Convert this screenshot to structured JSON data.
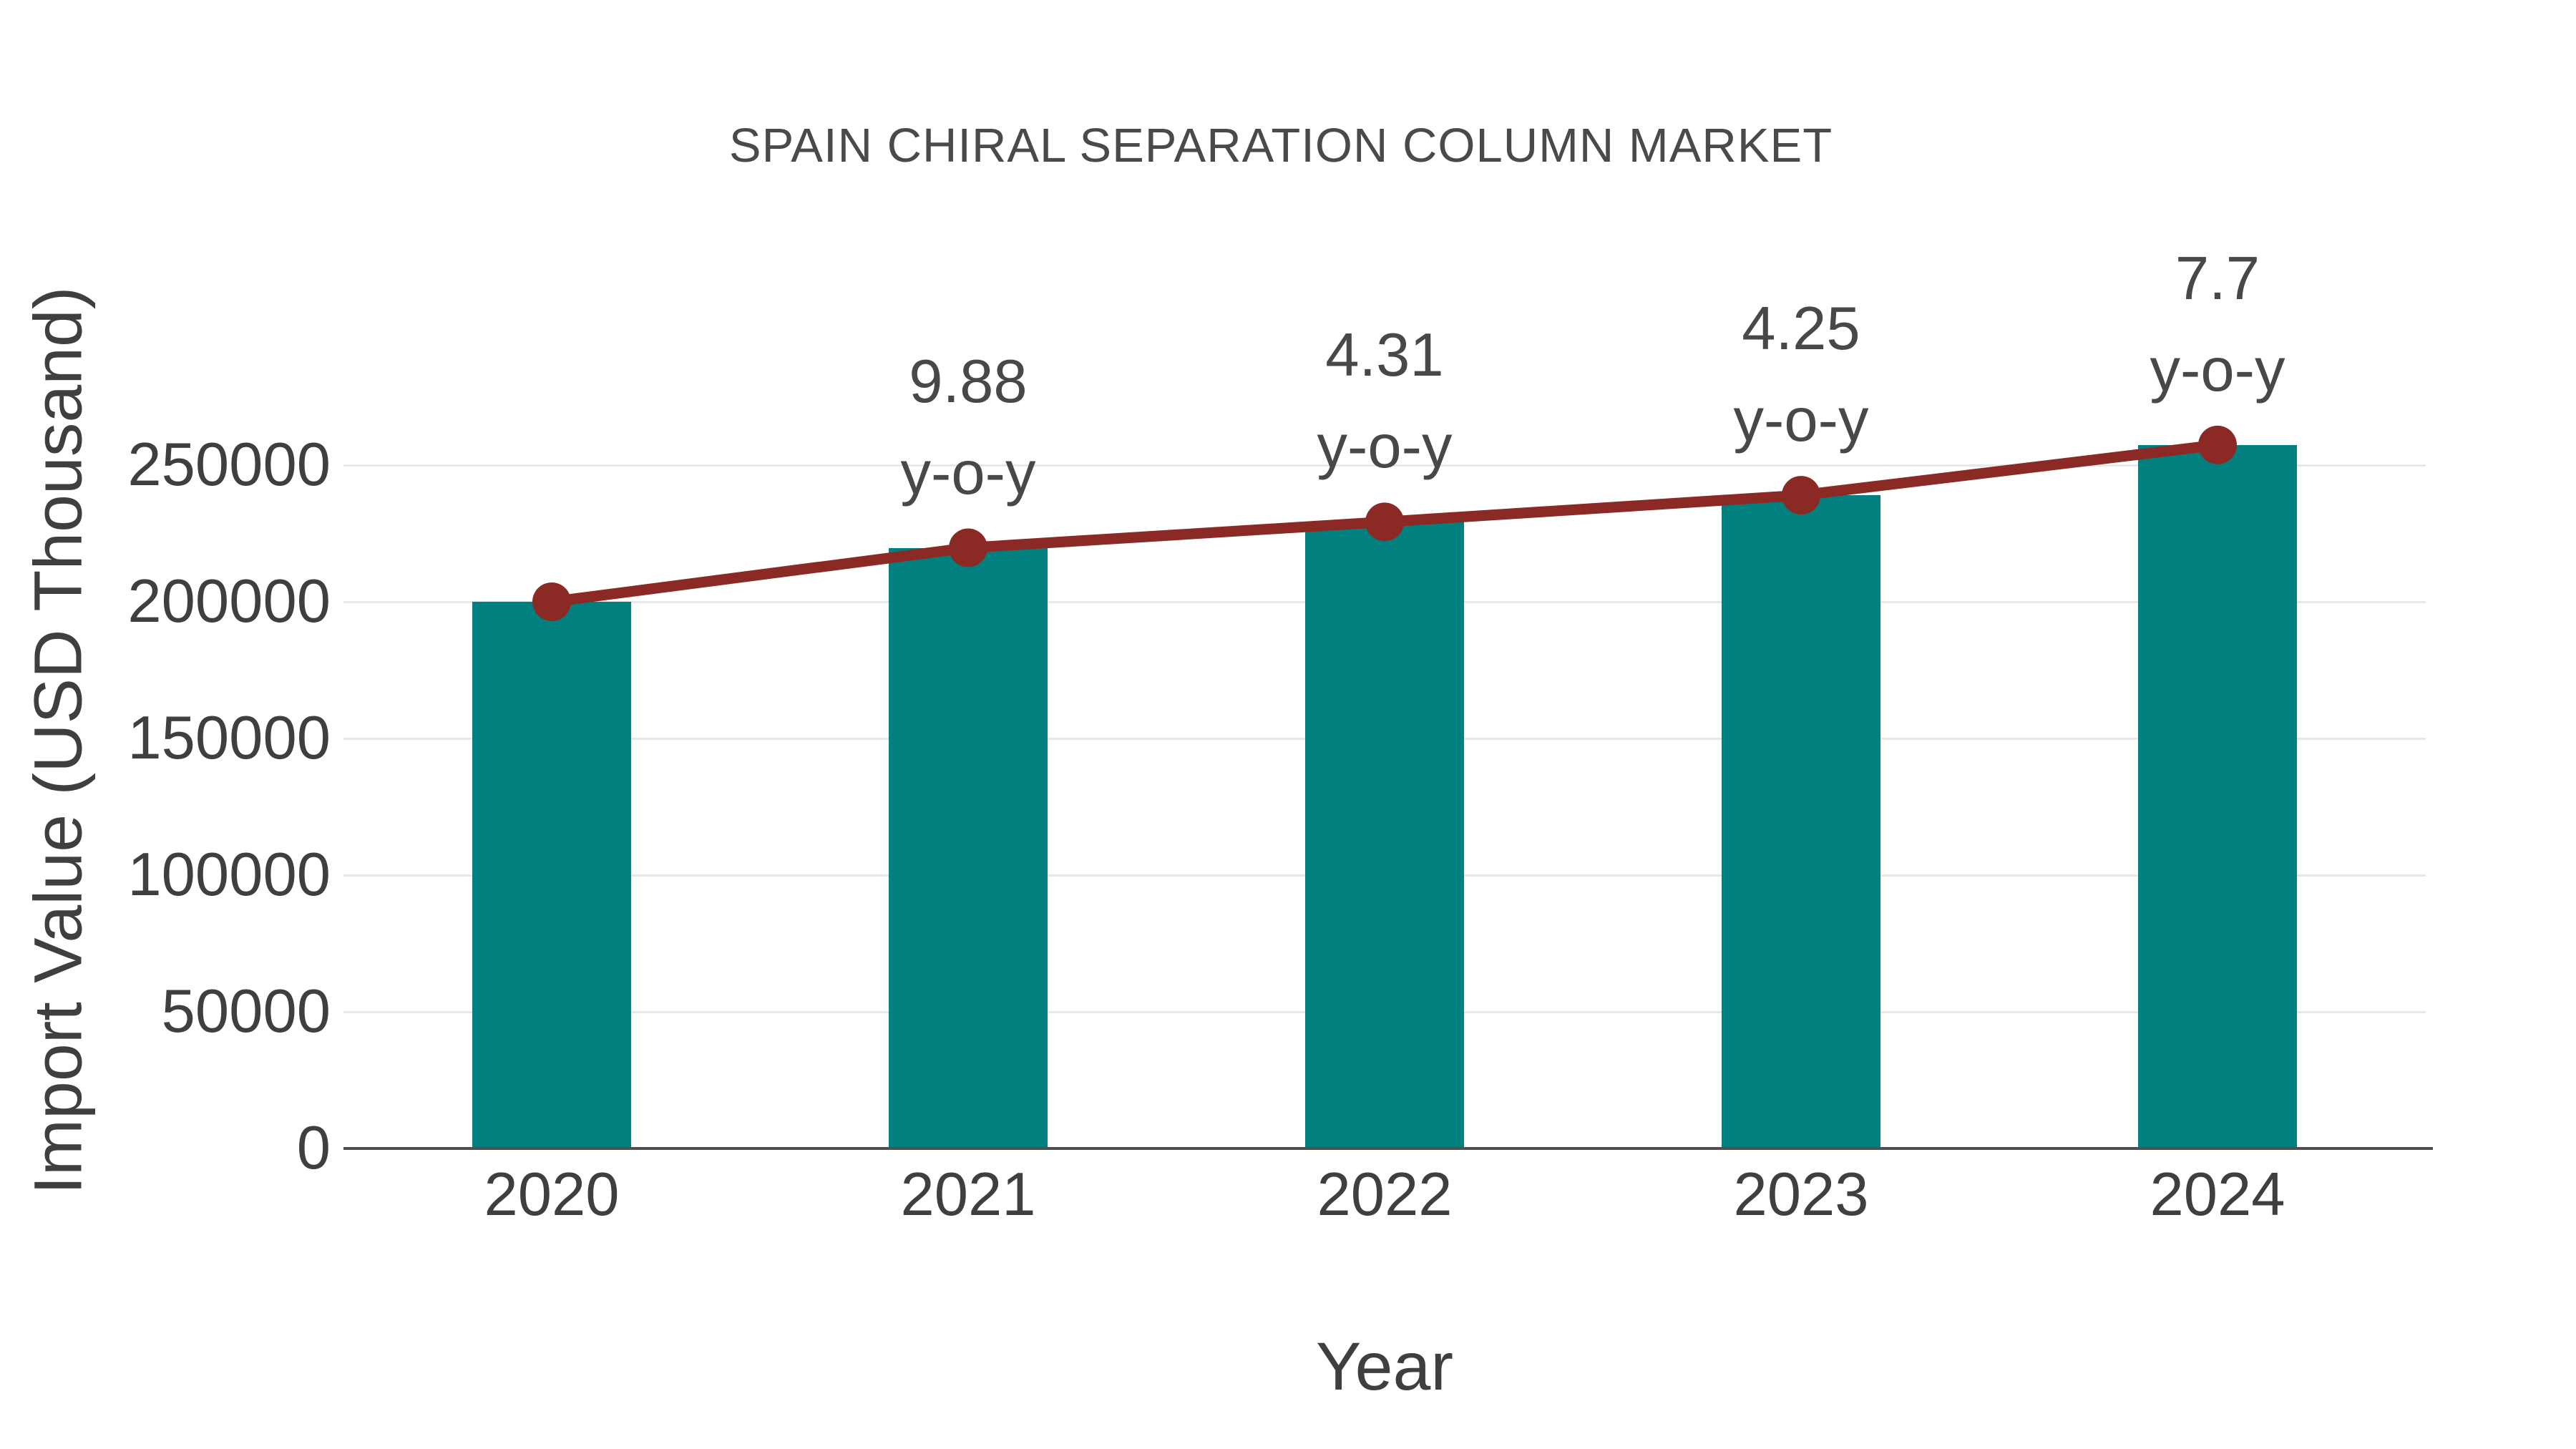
{
  "title": "SPAIN CHIRAL SEPARATION COLUMN MARKET",
  "colors": {
    "bar_teal": "#028080",
    "line_dark_red": "#8b2a24",
    "grid_gray": "#e8e8e8",
    "axis_gray": "#4f4f4f",
    "text_gray": "#474747"
  },
  "chart_data": {
    "type": "bar",
    "title": "SPAIN CHIRAL SEPARATION COLUMN MARKET",
    "xlabel": "Year",
    "ylabel": "Import Value (USD Thousand)",
    "categories": [
      "2020",
      "2021",
      "2022",
      "2023",
      "2024"
    ],
    "yticks": [
      0,
      50000,
      100000,
      150000,
      200000,
      250000
    ],
    "ylim": [
      0,
      261000
    ],
    "grid": "horizontal-light",
    "legend_position": "none",
    "series": [
      {
        "name": "Import Value (USD Thousand)",
        "type": "bar",
        "color": "#028080",
        "values": [
          200000,
          219760,
          229233,
          238975,
          257376
        ]
      },
      {
        "name": "Import Value trend with y-o-y growth",
        "type": "line",
        "color": "#8b2a24",
        "values": [
          200000,
          219760,
          229233,
          238975,
          257376
        ],
        "point_labels": [
          null,
          "9.88",
          "4.31",
          "4.25",
          "7.7"
        ],
        "point_label_suffix": "y-o-y"
      }
    ]
  }
}
